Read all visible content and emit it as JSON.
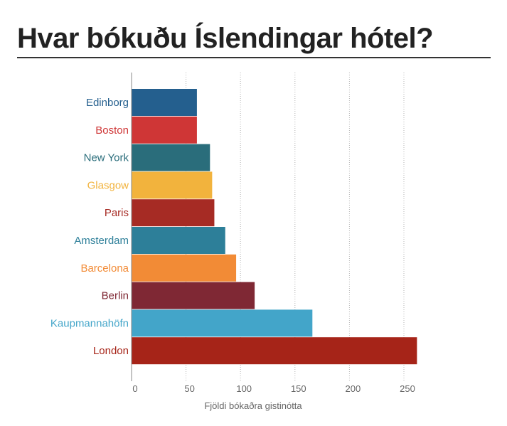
{
  "title": "Hvar bókuðu Íslendingar hótel?",
  "chart_data": {
    "type": "bar",
    "orientation": "horizontal",
    "title": "Hvar bókuðu Íslendingar hótel?",
    "xlabel": "Fjöldi bókaðra gistinótta",
    "ylabel": "",
    "xlim": [
      0,
      270
    ],
    "xticks": [
      0,
      50,
      100,
      150,
      200,
      250
    ],
    "grid": "vertical-dotted",
    "categories": [
      "Edinborg",
      "Boston",
      "New York",
      "Glasgow",
      "Paris",
      "Amsterdam",
      "Barcelona",
      "Berlin",
      "Kaupmannahöfn",
      "London"
    ],
    "values": [
      60,
      60,
      72,
      74,
      76,
      86,
      96,
      113,
      166,
      262
    ],
    "colors": [
      "#245f8e",
      "#cf3636",
      "#2a6d7b",
      "#f2b33d",
      "#a62b24",
      "#2d7f99",
      "#f28b36",
      "#7f2834",
      "#43a5c9",
      "#a62418"
    ]
  }
}
